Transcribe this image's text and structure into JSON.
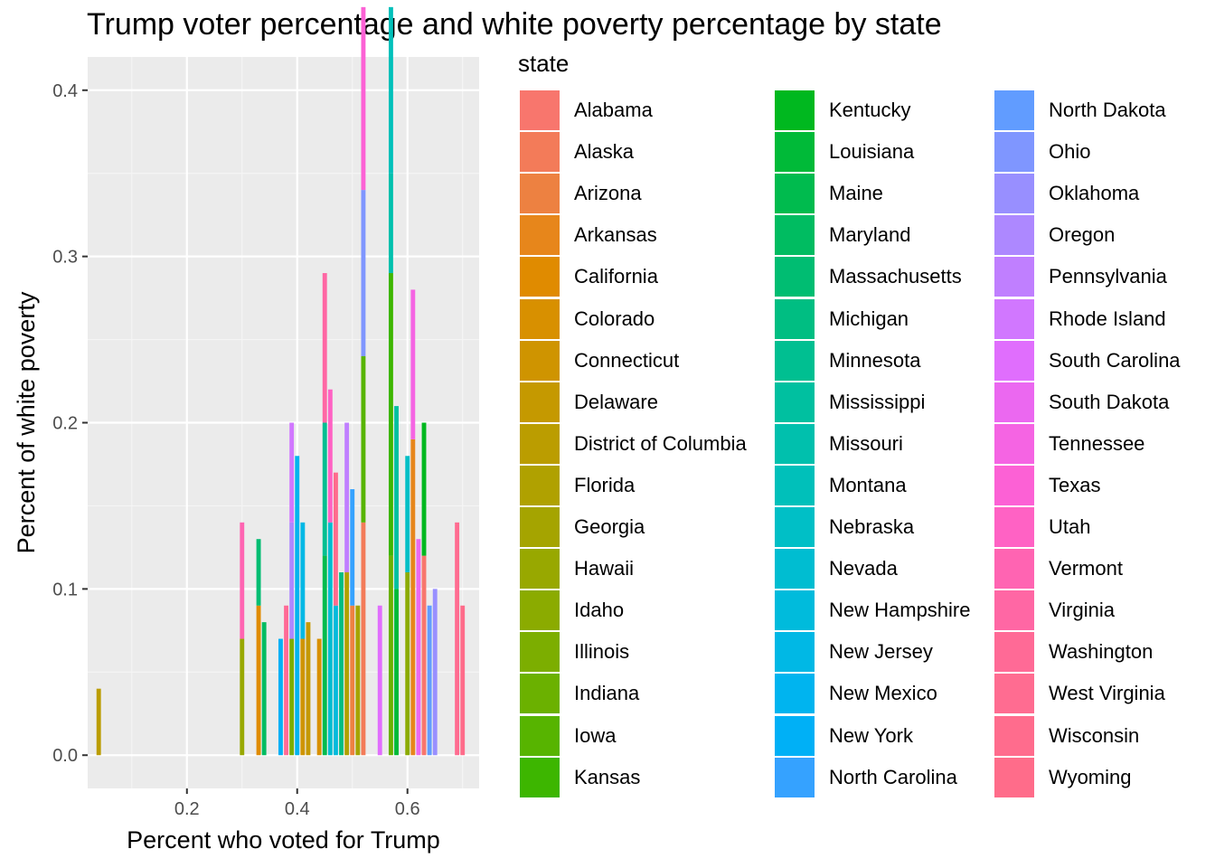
{
  "chart_data": {
    "type": "bar",
    "title": "Trump voter percentage and white poverty percentage by state",
    "xlabel": "Percent who voted for Trump",
    "ylabel": "Percent of white poverty",
    "xlim": [
      0.02,
      0.73
    ],
    "ylim": [
      -0.02,
      0.42
    ],
    "x_ticks": [
      0.2,
      0.4,
      0.6
    ],
    "x_tick_labels": [
      "0.2",
      "0.4",
      "0.6"
    ],
    "y_ticks": [
      0.0,
      0.1,
      0.2,
      0.3,
      0.4
    ],
    "y_tick_labels": [
      "0.0",
      "0.1",
      "0.2",
      "0.3",
      "0.4"
    ],
    "grid": true,
    "legend_title": "state",
    "legend_position": "right",
    "bar_width": 0.008,
    "states": [
      {
        "name": "Alabama",
        "x": 0.63,
        "y": 0.12,
        "color": "#F8766D"
      },
      {
        "name": "Alaska",
        "x": 0.52,
        "y": 0.14,
        "color": "#F37B59"
      },
      {
        "name": "Arizona",
        "x": 0.5,
        "y": 0.09,
        "color": "#ED8141"
      },
      {
        "name": "Arkansas",
        "x": 0.61,
        "y": 0.19,
        "color": "#E7861B"
      },
      {
        "name": "California",
        "x": 0.33,
        "y": 0.09,
        "color": "#E08B00"
      },
      {
        "name": "Colorado",
        "x": 0.44,
        "y": 0.07,
        "color": "#D89000"
      },
      {
        "name": "Connecticut",
        "x": 0.41,
        "y": 0.07,
        "color": "#CF9400"
      },
      {
        "name": "Delaware",
        "x": 0.42,
        "y": 0.08,
        "color": "#C59900"
      },
      {
        "name": "District of Columbia",
        "x": 0.04,
        "y": 0.04,
        "color": "#BB9D00"
      },
      {
        "name": "Florida",
        "x": 0.49,
        "y": 0.11,
        "color": "#B0A100"
      },
      {
        "name": "Georgia",
        "x": 0.51,
        "y": 0.09,
        "color": "#A5A400"
      },
      {
        "name": "Hawaii",
        "x": 0.3,
        "y": 0.07,
        "color": "#98A800"
      },
      {
        "name": "Idaho",
        "x": 0.6,
        "y": 0.11,
        "color": "#8BAB00"
      },
      {
        "name": "Illinois",
        "x": 0.39,
        "y": 0.07,
        "color": "#7CAE00"
      },
      {
        "name": "Indiana",
        "x": 0.57,
        "y": 0.12,
        "color": "#6BB100"
      },
      {
        "name": "Iowa",
        "x": 0.52,
        "y": 0.1,
        "color": "#57B400"
      },
      {
        "name": "Kansas",
        "x": 0.57,
        "y": 0.17,
        "color": "#3DB600"
      },
      {
        "name": "Kentucky",
        "x": 0.63,
        "y": 0.08,
        "color": "#00B81F"
      },
      {
        "name": "Louisiana",
        "x": 0.58,
        "y": 0.1,
        "color": "#00BA38"
      },
      {
        "name": "Maine",
        "x": 0.45,
        "y": 0.12,
        "color": "#00BB4E"
      },
      {
        "name": "Maryland",
        "x": 0.34,
        "y": 0.08,
        "color": "#00BC61"
      },
      {
        "name": "Massachusetts",
        "x": 0.33,
        "y": 0.04,
        "color": "#00BD72"
      },
      {
        "name": "Michigan",
        "x": 0.48,
        "y": 0.11,
        "color": "#00BE82"
      },
      {
        "name": "Minnesota",
        "x": 0.45,
        "y": 0.08,
        "color": "#00BF91"
      },
      {
        "name": "Mississippi",
        "x": 0.58,
        "y": 0.11,
        "color": "#00C0A0"
      },
      {
        "name": "Missouri",
        "x": 0.57,
        "y": 0.06,
        "color": "#00C0AD"
      },
      {
        "name": "Montana",
        "x": 0.57,
        "y": 0.1,
        "color": "#00C0BA"
      },
      {
        "name": "Nebraska",
        "x": 0.6,
        "y": 0.07,
        "color": "#00BFC6"
      },
      {
        "name": "Nevada",
        "x": 0.46,
        "y": 0.14,
        "color": "#00BDD1"
      },
      {
        "name": "New Hampshire",
        "x": 0.47,
        "y": 0.09,
        "color": "#00BBDC"
      },
      {
        "name": "New Jersey",
        "x": 0.41,
        "y": 0.07,
        "color": "#00B8E5"
      },
      {
        "name": "New Mexico",
        "x": 0.4,
        "y": 0.18,
        "color": "#00B4EF"
      },
      {
        "name": "New York",
        "x": 0.37,
        "y": 0.07,
        "color": "#00B0F6"
      },
      {
        "name": "North Carolina",
        "x": 0.5,
        "y": 0.07,
        "color": "#35A2FF"
      },
      {
        "name": "North Dakota",
        "x": 0.64,
        "y": 0.09,
        "color": "#619CFF"
      },
      {
        "name": "Ohio",
        "x": 0.52,
        "y": 0.1,
        "color": "#7F96FF"
      },
      {
        "name": "Oklahoma",
        "x": 0.65,
        "y": 0.1,
        "color": "#988FFF"
      },
      {
        "name": "Oregon",
        "x": 0.39,
        "y": 0.07,
        "color": "#AD88FF"
      },
      {
        "name": "Pennsylvania",
        "x": 0.49,
        "y": 0.09,
        "color": "#C07FFF"
      },
      {
        "name": "Rhode Island",
        "x": 0.39,
        "y": 0.06,
        "color": "#D177FF"
      },
      {
        "name": "South Carolina",
        "x": 0.55,
        "y": 0.09,
        "color": "#E06EFD"
      },
      {
        "name": "South Dakota",
        "x": 0.62,
        "y": 0.13,
        "color": "#EB68F0"
      },
      {
        "name": "Tennessee",
        "x": 0.61,
        "y": 0.09,
        "color": "#F564E3"
      },
      {
        "name": "Texas",
        "x": 0.52,
        "y": 0.11,
        "color": "#FC61D5"
      },
      {
        "name": "Utah",
        "x": 0.46,
        "y": 0.08,
        "color": "#FF62C4"
      },
      {
        "name": "Vermont",
        "x": 0.3,
        "y": 0.07,
        "color": "#FF64B2"
      },
      {
        "name": "Virginia",
        "x": 0.45,
        "y": 0.09,
        "color": "#FF67A4"
      },
      {
        "name": "Washington",
        "x": 0.38,
        "y": 0.09,
        "color": "#FF6A96"
      },
      {
        "name": "West Virginia",
        "x": 0.69,
        "y": 0.14,
        "color": "#FF6C91"
      },
      {
        "name": "Wisconsin",
        "x": 0.47,
        "y": 0.08,
        "color": "#FF6C8D"
      },
      {
        "name": "Wyoming",
        "x": 0.7,
        "y": 0.09,
        "color": "#FF6C8A"
      }
    ]
  },
  "colors": {
    "panel_background": "#EBEBEB",
    "grid_major": "#FFFFFF",
    "grid_minor": "#F5F5F5",
    "axis_text": "#4D4D4D",
    "axis_ticks": "#333333"
  }
}
